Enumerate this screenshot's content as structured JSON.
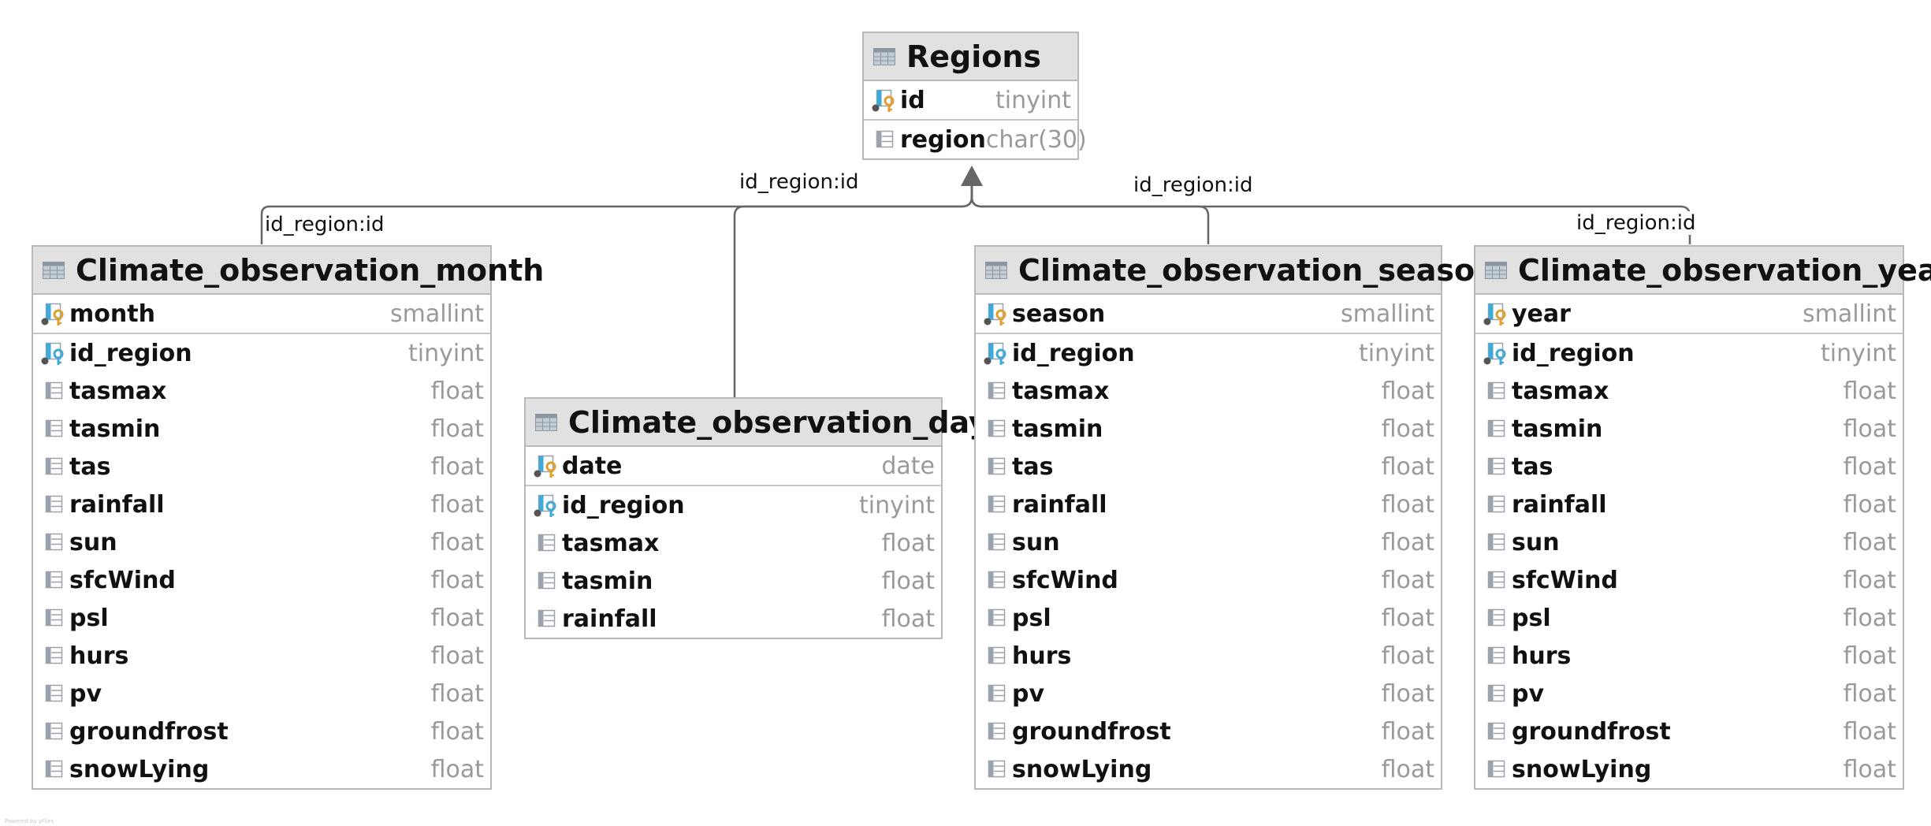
{
  "tables": [
    {
      "name": "Regions",
      "pk_columns": [
        {
          "name": "id",
          "type": "tinyint",
          "icon": "primary-key-icon"
        }
      ],
      "columns": [
        {
          "name": "region",
          "type": "char(30)",
          "icon": "column-icon"
        }
      ]
    },
    {
      "name": "Climate_observation_month",
      "pk_columns": [
        {
          "name": "month",
          "type": "smallint",
          "icon": "primary-key-icon"
        }
      ],
      "columns": [
        {
          "name": "id_region",
          "type": "tinyint",
          "icon": "foreign-key-icon"
        },
        {
          "name": "tasmax",
          "type": "float",
          "icon": "column-icon"
        },
        {
          "name": "tasmin",
          "type": "float",
          "icon": "column-icon"
        },
        {
          "name": "tas",
          "type": "float",
          "icon": "column-icon"
        },
        {
          "name": "rainfall",
          "type": "float",
          "icon": "column-icon"
        },
        {
          "name": "sun",
          "type": "float",
          "icon": "column-icon"
        },
        {
          "name": "sfcWind",
          "type": "float",
          "icon": "column-icon"
        },
        {
          "name": "psl",
          "type": "float",
          "icon": "column-icon"
        },
        {
          "name": "hurs",
          "type": "float",
          "icon": "column-icon"
        },
        {
          "name": "pv",
          "type": "float",
          "icon": "column-icon"
        },
        {
          "name": "groundfrost",
          "type": "float",
          "icon": "column-icon"
        },
        {
          "name": "snowLying",
          "type": "float",
          "icon": "column-icon"
        }
      ]
    },
    {
      "name": "Climate_observation_day",
      "pk_columns": [
        {
          "name": "date",
          "type": "date",
          "icon": "primary-key-icon"
        }
      ],
      "columns": [
        {
          "name": "id_region",
          "type": "tinyint",
          "icon": "foreign-key-icon"
        },
        {
          "name": "tasmax",
          "type": "float",
          "icon": "column-icon"
        },
        {
          "name": "tasmin",
          "type": "float",
          "icon": "column-icon"
        },
        {
          "name": "rainfall",
          "type": "float",
          "icon": "column-icon"
        }
      ]
    },
    {
      "name": "Climate_observation_season",
      "pk_columns": [
        {
          "name": "season",
          "type": "smallint",
          "icon": "primary-key-icon"
        }
      ],
      "columns": [
        {
          "name": "id_region",
          "type": "tinyint",
          "icon": "foreign-key-icon"
        },
        {
          "name": "tasmax",
          "type": "float",
          "icon": "column-icon"
        },
        {
          "name": "tasmin",
          "type": "float",
          "icon": "column-icon"
        },
        {
          "name": "tas",
          "type": "float",
          "icon": "column-icon"
        },
        {
          "name": "rainfall",
          "type": "float",
          "icon": "column-icon"
        },
        {
          "name": "sun",
          "type": "float",
          "icon": "column-icon"
        },
        {
          "name": "sfcWind",
          "type": "float",
          "icon": "column-icon"
        },
        {
          "name": "psl",
          "type": "float",
          "icon": "column-icon"
        },
        {
          "name": "hurs",
          "type": "float",
          "icon": "column-icon"
        },
        {
          "name": "pv",
          "type": "float",
          "icon": "column-icon"
        },
        {
          "name": "groundfrost",
          "type": "float",
          "icon": "column-icon"
        },
        {
          "name": "snowLying",
          "type": "float",
          "icon": "column-icon"
        }
      ]
    },
    {
      "name": "Climate_observation_year",
      "pk_columns": [
        {
          "name": "year",
          "type": "smallint",
          "icon": "primary-key-icon"
        }
      ],
      "columns": [
        {
          "name": "id_region",
          "type": "tinyint",
          "icon": "foreign-key-icon"
        },
        {
          "name": "tasmax",
          "type": "float",
          "icon": "column-icon"
        },
        {
          "name": "tasmin",
          "type": "float",
          "icon": "column-icon"
        },
        {
          "name": "tas",
          "type": "float",
          "icon": "column-icon"
        },
        {
          "name": "rainfall",
          "type": "float",
          "icon": "column-icon"
        },
        {
          "name": "sun",
          "type": "float",
          "icon": "column-icon"
        },
        {
          "name": "sfcWind",
          "type": "float",
          "icon": "column-icon"
        },
        {
          "name": "psl",
          "type": "float",
          "icon": "column-icon"
        },
        {
          "name": "hurs",
          "type": "float",
          "icon": "column-icon"
        },
        {
          "name": "pv",
          "type": "float",
          "icon": "column-icon"
        },
        {
          "name": "groundfrost",
          "type": "float",
          "icon": "column-icon"
        },
        {
          "name": "snowLying",
          "type": "float",
          "icon": "column-icon"
        }
      ]
    }
  ],
  "relations": [
    {
      "from": "Climate_observation_month",
      "to": "Regions",
      "label": "id_region:id"
    },
    {
      "from": "Climate_observation_day",
      "to": "Regions",
      "label": "id_region:id"
    },
    {
      "from": "Climate_observation_season",
      "to": "Regions",
      "label": "id_region:id"
    },
    {
      "from": "Climate_observation_year",
      "to": "Regions",
      "label": "id_region:id"
    }
  ],
  "colors": {
    "header_bg": "#e1e1e1",
    "border": "#b9b9b9",
    "connector": "#666666",
    "primary_key": "#e0a030",
    "foreign_key": "#3fa9d8",
    "column_icon": "#9aa3ad",
    "type_text": "#9a9a9a"
  },
  "watermark": "Powered by yFiles"
}
